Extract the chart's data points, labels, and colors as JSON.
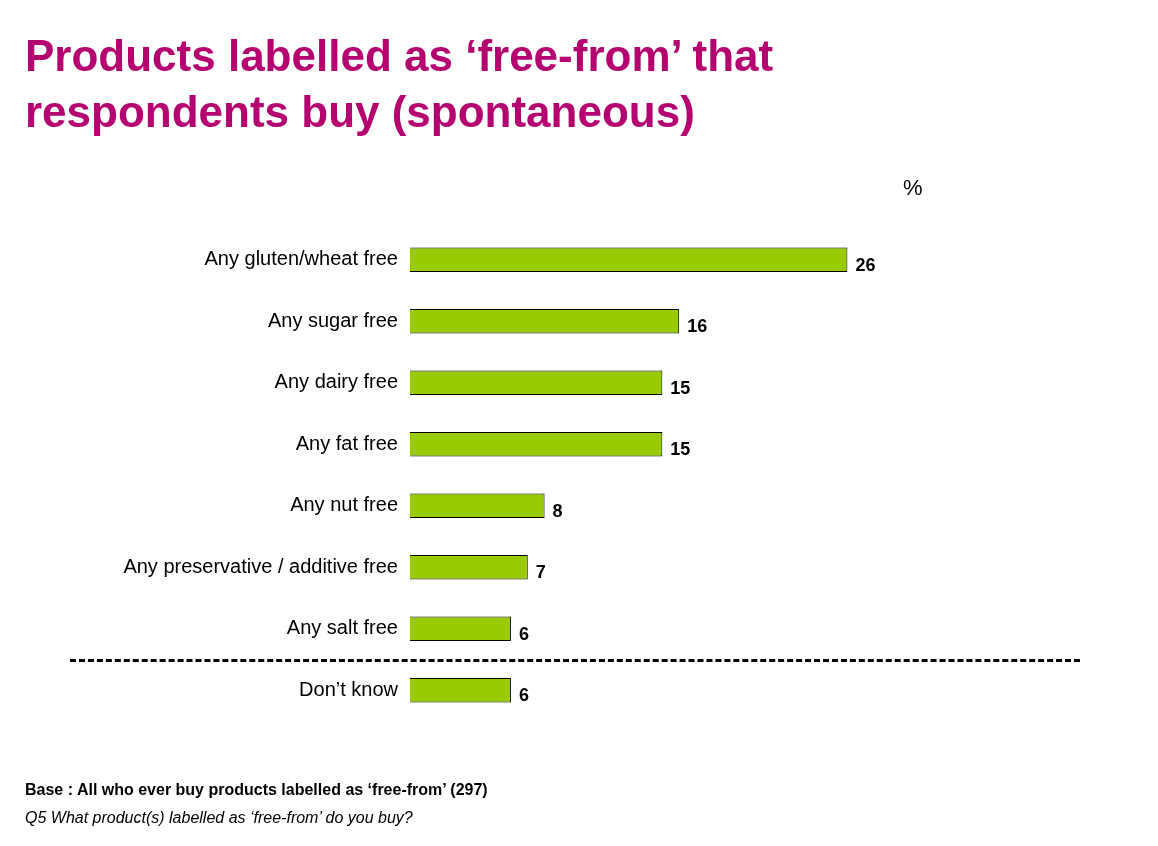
{
  "chart_data": {
    "type": "bar",
    "orientation": "horizontal",
    "title": "Products labelled as ‘free-from’ that respondents buy (spontaneous)",
    "categories": [
      "Any gluten/wheat free",
      "Any sugar free",
      "Any dairy free",
      "Any fat free",
      "Any nut free",
      "Any preservative / additive free",
      "Any salt free",
      "Don’t know"
    ],
    "values": [
      26,
      16,
      15,
      15,
      8,
      7,
      6,
      6
    ],
    "color": "#99cc00",
    "data_labels": true,
    "grid": false,
    "legend": false,
    "annotations": [
      "%",
      "Base : All who ever buy products labelled as ‘free-from’ (297)",
      "Q5 What product(s) labelled as ‘free-from’ do you buy?"
    ]
  }
}
